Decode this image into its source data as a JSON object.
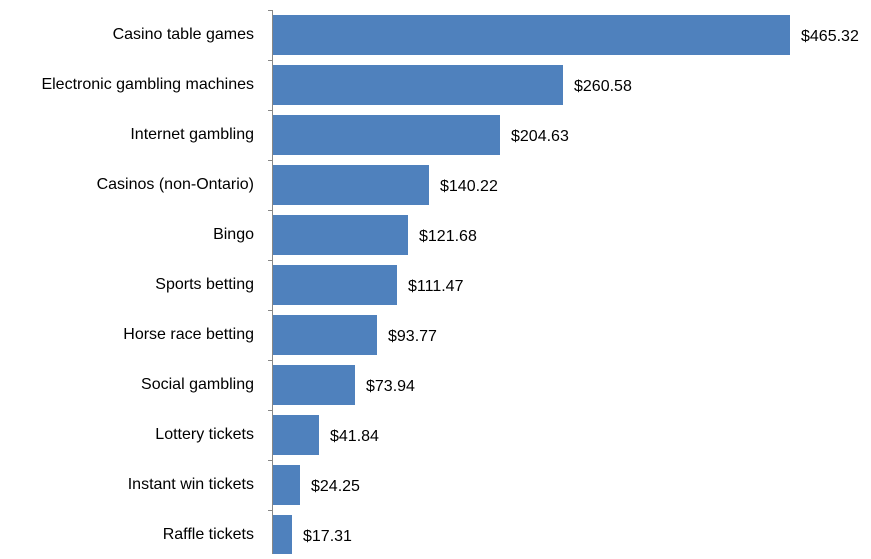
{
  "chart_data": {
    "type": "bar",
    "orientation": "horizontal",
    "categories": [
      "Casino table games",
      "Electronic gambling machines",
      "Internet gambling",
      "Casinos (non-Ontario)",
      "Bingo",
      "Sports betting",
      "Horse race betting",
      "Social gambling",
      "Lottery tickets",
      "Instant win tickets",
      "Raffle tickets"
    ],
    "values": [
      465.32,
      260.58,
      204.63,
      140.22,
      121.68,
      111.47,
      93.77,
      73.94,
      41.84,
      24.25,
      17.31
    ],
    "data_labels": [
      "$465.32",
      "$260.58",
      "$204.63",
      "$140.22",
      "$121.68",
      "$111.47",
      "$93.77",
      "$73.94",
      "$41.84",
      "$24.25",
      "$17.31"
    ],
    "title": "",
    "xlabel": "",
    "ylabel": "",
    "xlim": [
      0,
      465.32
    ],
    "grid": false,
    "legend": "none",
    "bar_color": "#4f81bd",
    "axis_color": "#878787"
  }
}
